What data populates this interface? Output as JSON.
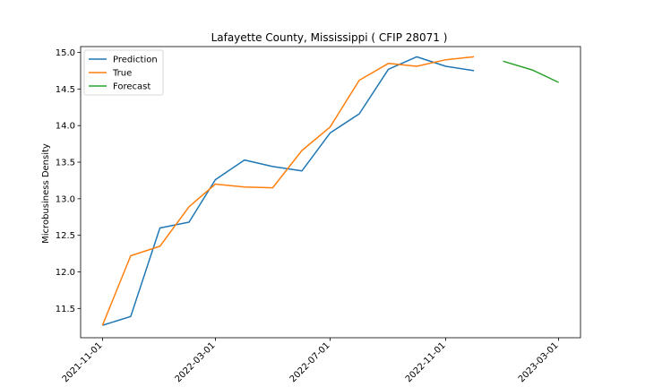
{
  "chart_data": {
    "type": "line",
    "title": "Lafayette County, Mississippi ( CFIP 28071 )",
    "xlabel": "",
    "ylabel": "Microbusiness Density",
    "ylim": [
      11.1,
      15.08
    ],
    "yticks": [
      "11.5",
      "12.0",
      "12.5",
      "13.0",
      "13.5",
      "14.0",
      "14.5",
      "15.0"
    ],
    "xticks": [
      "2021-11-01",
      "2022-03-01",
      "2022-07-01",
      "2022-11-01",
      "2023-03-01"
    ],
    "legend_position": "upper-left",
    "grid": false,
    "series": [
      {
        "name": "Prediction",
        "color": "#1f77b4",
        "x": [
          "2021-11-01",
          "2021-12-01",
          "2022-01-01",
          "2022-02-01",
          "2022-03-01",
          "2022-04-01",
          "2022-05-01",
          "2022-06-01",
          "2022-07-01",
          "2022-08-01",
          "2022-09-01",
          "2022-10-01",
          "2022-11-01",
          "2022-12-01"
        ],
        "values": [
          11.27,
          11.39,
          12.6,
          12.68,
          13.26,
          13.53,
          13.44,
          13.38,
          13.9,
          14.16,
          14.77,
          14.94,
          14.81,
          14.75
        ]
      },
      {
        "name": "True",
        "color": "#ff7f0e",
        "x": [
          "2021-11-01",
          "2021-12-01",
          "2022-01-01",
          "2022-02-01",
          "2022-03-01",
          "2022-04-01",
          "2022-05-01",
          "2022-06-01",
          "2022-07-01",
          "2022-08-01",
          "2022-09-01",
          "2022-10-01",
          "2022-11-01",
          "2022-12-01"
        ],
        "values": [
          11.27,
          12.22,
          12.35,
          12.89,
          13.2,
          13.16,
          13.15,
          13.66,
          13.98,
          14.62,
          14.85,
          14.81,
          14.9,
          14.94
        ]
      },
      {
        "name": "Forecast",
        "color": "#2ca02c",
        "x": [
          "2023-01-01",
          "2023-02-01",
          "2023-03-01"
        ],
        "values": [
          14.88,
          14.76,
          14.59
        ]
      }
    ]
  }
}
